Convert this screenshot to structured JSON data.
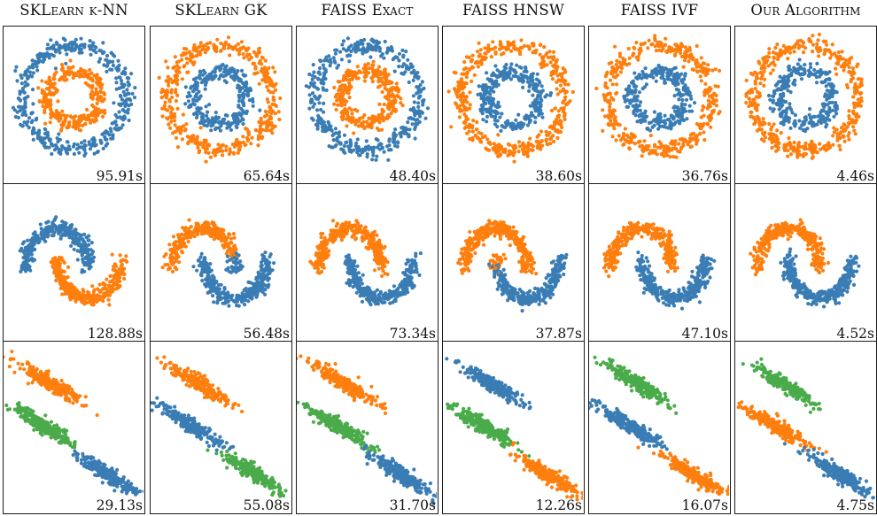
{
  "colors": {
    "blue": "#3a7db5",
    "orange": "#ff7f0e",
    "green": "#4aab4a"
  },
  "chart_data": {
    "type": "scatter",
    "columns": [
      "SKLearn k-NN",
      "SKLearn GK",
      "FAISS Exact",
      "FAISS HNSW",
      "FAISS IVF",
      "Our Algorithm"
    ],
    "rows": [
      {
        "dataset": "circles",
        "panels": [
          {
            "time": "95.91s",
            "outer": "blue",
            "inner": "orange"
          },
          {
            "time": "65.64s",
            "outer": "orange",
            "inner": "blue"
          },
          {
            "time": "48.40s",
            "outer": "blue",
            "inner": "orange"
          },
          {
            "time": "38.60s",
            "outer": "orange",
            "inner": "blue"
          },
          {
            "time": "36.76s",
            "outer": "orange",
            "inner": "blue"
          },
          {
            "time": "4.46s",
            "outer": "orange",
            "inner": "blue"
          }
        ]
      },
      {
        "dataset": "moons",
        "panels": [
          {
            "time": "128.88s",
            "upper": "blue",
            "lower": "orange",
            "leak": null
          },
          {
            "time": "56.48s",
            "upper": "orange",
            "lower": "blue",
            "leak": "upper-tip-blue"
          },
          {
            "time": "73.34s",
            "upper": "orange",
            "lower": "blue",
            "leak": null
          },
          {
            "time": "37.87s",
            "upper": "orange",
            "lower": "blue",
            "leak": "lower-start-orange"
          },
          {
            "time": "47.10s",
            "upper": "orange",
            "lower": "blue",
            "leak": null
          },
          {
            "time": "4.52s",
            "upper": "orange",
            "lower": "blue",
            "leak": null
          }
        ]
      },
      {
        "dataset": "anisotropic blobs",
        "panels": [
          {
            "time": "29.13s",
            "top": "orange",
            "middle": "green",
            "bottom": "blue"
          },
          {
            "time": "55.08s",
            "top": "orange",
            "middle": "blue",
            "bottom": "green"
          },
          {
            "time": "31.70s",
            "top": "orange",
            "middle": "green",
            "bottom": "blue"
          },
          {
            "time": "12.26s",
            "top": "blue",
            "middle": "green",
            "bottom": "orange"
          },
          {
            "time": "16.07s",
            "top": "green",
            "middle": "blue",
            "bottom": "orange"
          },
          {
            "time": "4.75s",
            "top": "green",
            "middle": "orange",
            "bottom": "blue"
          }
        ]
      }
    ]
  }
}
